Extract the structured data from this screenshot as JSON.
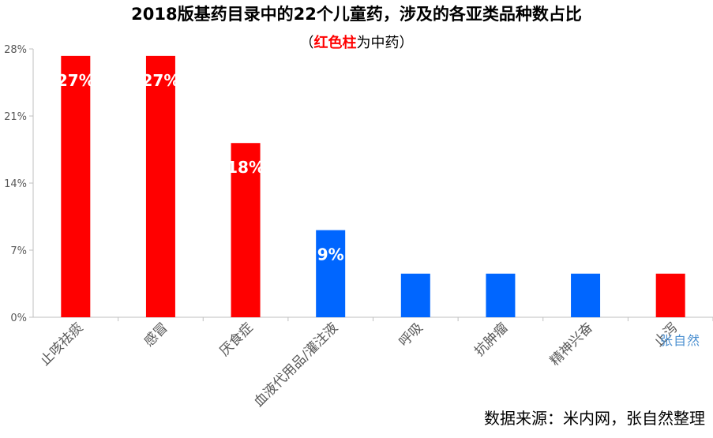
{
  "title": "2018版基药目录中的22个儿童药，涉及的各亚类品种数占比",
  "subtitle": {
    "open": "（",
    "highlight": "红色柱",
    "rest": "为中药）"
  },
  "source": "数据来源：米内网，张自然整理",
  "watermark": "张自然",
  "colors": {
    "tcm": "#ff0000",
    "western": "#0066ff",
    "axis": "#bfbfbf",
    "tick_text": "#595959",
    "data_label": "#ffffff"
  },
  "chart_data": {
    "type": "bar",
    "title": "2018版基药目录中的22个儿童药，涉及的各亚类品种数占比",
    "xlabel": "",
    "ylabel": "",
    "ylim": [
      0,
      28
    ],
    "yticks": [
      0,
      7,
      14,
      21,
      28
    ],
    "ytick_labels": [
      "0%",
      "7%",
      "14%",
      "21%",
      "28%"
    ],
    "grid": false,
    "categories": [
      "止咳祛痰",
      "感冒",
      "厌食症",
      "血液代用品/灌注液",
      "呼吸",
      "抗肿瘤",
      "精神兴奋",
      "止泻"
    ],
    "values": [
      27.27,
      27.27,
      18.18,
      9.09,
      4.55,
      4.55,
      4.55,
      4.55
    ],
    "groups": [
      "tcm",
      "tcm",
      "tcm",
      "western",
      "western",
      "western",
      "western",
      "tcm"
    ],
    "data_labels": [
      "27%",
      "27%",
      "18%",
      "9%",
      "",
      "",
      "",
      ""
    ]
  }
}
